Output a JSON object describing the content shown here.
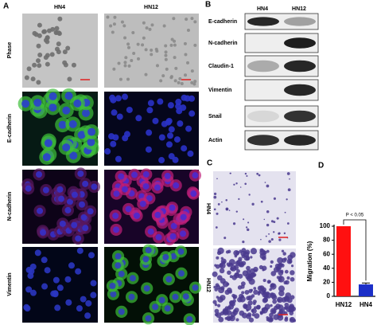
{
  "panels": {
    "a": {
      "label": "A",
      "columns": [
        "HN4",
        "HN12"
      ],
      "rows": [
        "Phase",
        "E-cadherin",
        "N-cadherin",
        "Vimentin"
      ]
    },
    "b": {
      "label": "B",
      "columns": [
        "HN4",
        "HN12"
      ],
      "rows": [
        "E-cadherin",
        "N-cadherin",
        "Claudin-1",
        "Vimentin",
        "Snail",
        "Actin"
      ]
    },
    "c": {
      "label": "C",
      "rows": [
        "HN4",
        "HN12"
      ]
    },
    "d": {
      "label": "D"
    }
  },
  "chart_data": {
    "type": "bar",
    "y_label": "Migration  (%)",
    "categories": [
      "HN12",
      "HN4"
    ],
    "values": [
      100,
      17
    ],
    "errors": [
      0,
      2
    ],
    "colors": [
      "#ff1010",
      "#1c2fc8"
    ],
    "ylim": [
      0,
      100
    ],
    "yticks": [
      0,
      20,
      40,
      60,
      80,
      100
    ],
    "annotation": "P < 0.05"
  }
}
